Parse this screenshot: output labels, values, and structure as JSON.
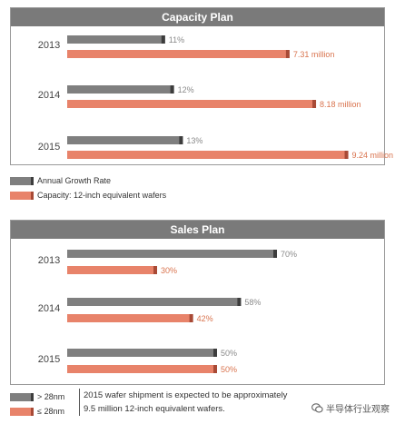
{
  "colors": {
    "gray": "#7f7f7f",
    "gray_cap": "#3d3d3d",
    "orange": "#e8836a",
    "orange_cap": "#a84a36",
    "gray_label": "#8a8a8a",
    "orange_label": "#d9744f"
  },
  "chart_data": [
    {
      "type": "bar",
      "orientation": "horizontal",
      "title": "Capacity Plan",
      "categories": [
        "2013",
        "2014",
        "2015"
      ],
      "series": [
        {
          "name": "Annual Growth Rate",
          "values": [
            11,
            12,
            13
          ],
          "labels": [
            "11%",
            "12%",
            "13%"
          ],
          "color": "gray"
        },
        {
          "name": "Capacity: 12-inch equivalent wafers",
          "values": [
            7.31,
            8.18,
            9.24
          ],
          "labels": [
            "7.31 million",
            "8.18 million",
            "9.24 million"
          ],
          "color": "orange"
        }
      ],
      "legend": [
        "Annual Growth Rate",
        "Capacity: 12-inch equivalent wafers"
      ],
      "grid": false,
      "legend_position": "bottom-left"
    },
    {
      "type": "bar",
      "orientation": "horizontal",
      "title": "Sales Plan",
      "categories": [
        "2013",
        "2014",
        "2015"
      ],
      "series": [
        {
          "name": "> 28nm",
          "values": [
            70,
            58,
            50
          ],
          "labels": [
            "70%",
            "58%",
            "50%"
          ],
          "color": "gray"
        },
        {
          "name": "≤ 28nm",
          "values": [
            30,
            42,
            50
          ],
          "labels": [
            "30%",
            "42%",
            "50%"
          ],
          "color": "orange"
        }
      ],
      "legend": [
        "> 28nm",
        "≤ 28nm"
      ],
      "grid": false,
      "legend_position": "bottom-left"
    }
  ],
  "note": "2015 wafer shipment is expected to be approximately 9.5 million 12-inch equivalent wafers.",
  "watermark": "半导体行业观察"
}
